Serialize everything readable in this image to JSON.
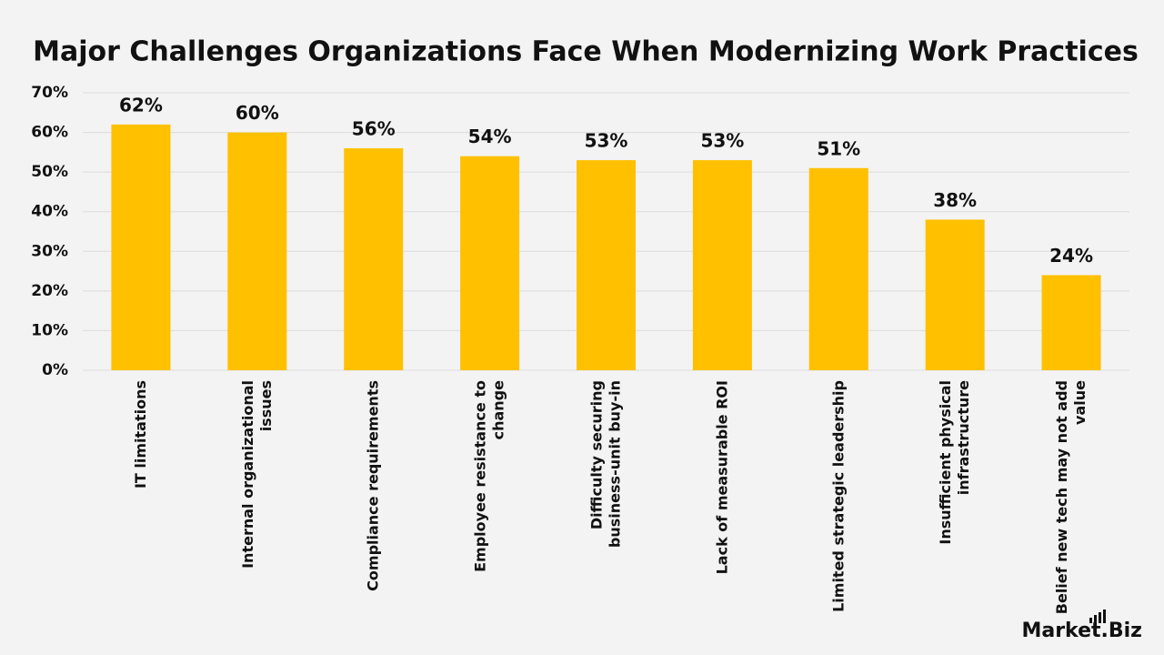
{
  "chart_data": {
    "type": "bar",
    "title": "Major Challenges Organizations Face When Modernizing Work Practices",
    "categories": [
      "IT limitations",
      "Internal organizational issues",
      "Compliance requirements",
      "Employee resistance to change",
      "Difficulty securing business-unit buy-in",
      "Lack of measurable ROI",
      "Limited strategic leadership",
      "Insufficient physical infrastructure",
      "Belief new tech may not add value"
    ],
    "values": [
      62,
      60,
      56,
      54,
      53,
      53,
      51,
      38,
      24
    ],
    "value_labels": [
      "62%",
      "60%",
      "56%",
      "54%",
      "53%",
      "53%",
      "51%",
      "38%",
      "24%"
    ],
    "color": "#ffc000",
    "ylim": [
      0,
      70
    ],
    "yticks": [
      {
        "value": 0,
        "label": "0%"
      },
      {
        "value": 10,
        "label": "10%"
      },
      {
        "value": 20,
        "label": "20%"
      },
      {
        "value": 30,
        "label": "30%"
      },
      {
        "value": 40,
        "label": "40%"
      },
      {
        "value": 50,
        "label": "50%"
      },
      {
        "value": 60,
        "label": "60%"
      },
      {
        "value": 70,
        "label": "70%"
      }
    ],
    "grid": true,
    "logo": "Market.Biz"
  }
}
